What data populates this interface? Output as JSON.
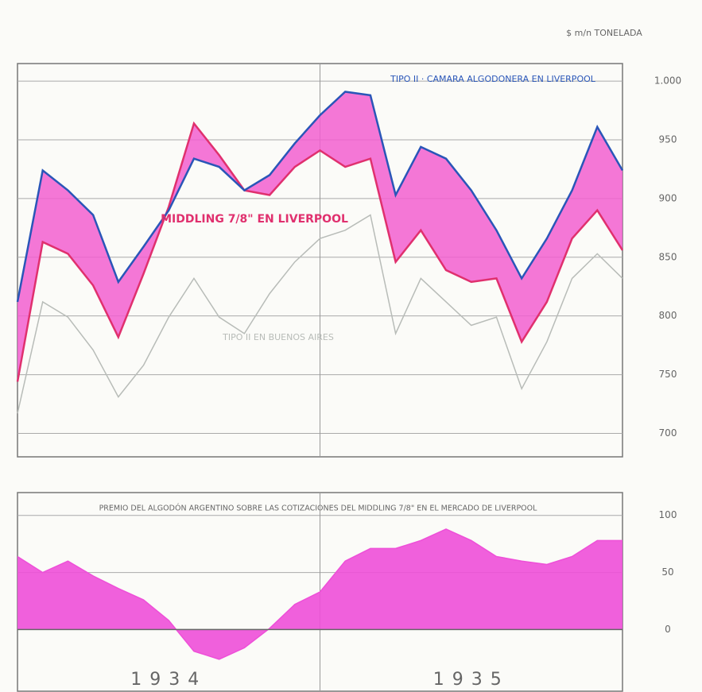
{
  "chart_data": [
    {
      "type": "line",
      "y_label": "$ m/n TONELADA",
      "x": [
        0,
        1,
        2,
        3,
        4,
        5,
        6,
        7,
        8,
        9,
        10,
        11,
        12,
        13,
        14,
        15,
        16,
        17,
        18,
        19,
        20,
        21,
        22,
        23,
        24
      ],
      "xlim": [
        0,
        24
      ],
      "series": [
        {
          "name": "TIPO II · CAMARA ALGODONERA EN LIVERPOOL",
          "color": "#2a56b8",
          "values": [
            812,
            924,
            907,
            886,
            829,
            859,
            890,
            934,
            927,
            907,
            920,
            947,
            971,
            991,
            988,
            903,
            944,
            934,
            907,
            873,
            832,
            866,
            907,
            961,
            924
          ]
        },
        {
          "name": "MIDDLING 7/8\" EN LIVERPOOL",
          "color": "#e0306e",
          "values": [
            744,
            863,
            853,
            826,
            782,
            836,
            893,
            964,
            937,
            907,
            903,
            927,
            941,
            927,
            934,
            846,
            873,
            839,
            829,
            832,
            778,
            812,
            866,
            890,
            856
          ]
        },
        {
          "name": "TIPO II EN BUENOS AIRES",
          "color": "#b8bcb8",
          "values": [
            717,
            812,
            799,
            771,
            731,
            758,
            799,
            832,
            799,
            785,
            819,
            846,
            866,
            873,
            886,
            785,
            832,
            812,
            792,
            799,
            738,
            778,
            832,
            853,
            832
          ]
        }
      ],
      "fill_color": "#f25fd0",
      "ylim": [
        680,
        1015
      ],
      "yticks": [
        {
          "value": 1000,
          "label": "1.000"
        },
        950,
        900,
        850,
        800,
        750,
        700
      ],
      "grid": true
    },
    {
      "type": "area",
      "title": "PREMIO DEL ALGODÓN ARGENTINO SOBRE LAS COTIZACIONES DEL MIDDLING 7/8\" EN EL MERCADO DE LIVERPOOL",
      "x": [
        0,
        1,
        2,
        3,
        4,
        5,
        6,
        7,
        8,
        9,
        10,
        11,
        12,
        13,
        14,
        15,
        16,
        17,
        18,
        19,
        20,
        21,
        22,
        23,
        24
      ],
      "xlim": [
        0,
        24
      ],
      "values": [
        64,
        50,
        60,
        47,
        36,
        26,
        8,
        -19,
        -26,
        -16,
        1,
        22,
        33,
        60,
        71,
        71,
        78,
        88,
        78,
        64,
        60,
        57,
        64,
        78,
        78
      ],
      "color": "#ee4fd8",
      "ylim": [
        -54,
        120
      ],
      "yticks": [
        100,
        50,
        0
      ],
      "xticks": [
        {
          "value": 6,
          "label": "1934"
        },
        {
          "value": 18,
          "label": "1935"
        }
      ],
      "grid": true
    }
  ]
}
